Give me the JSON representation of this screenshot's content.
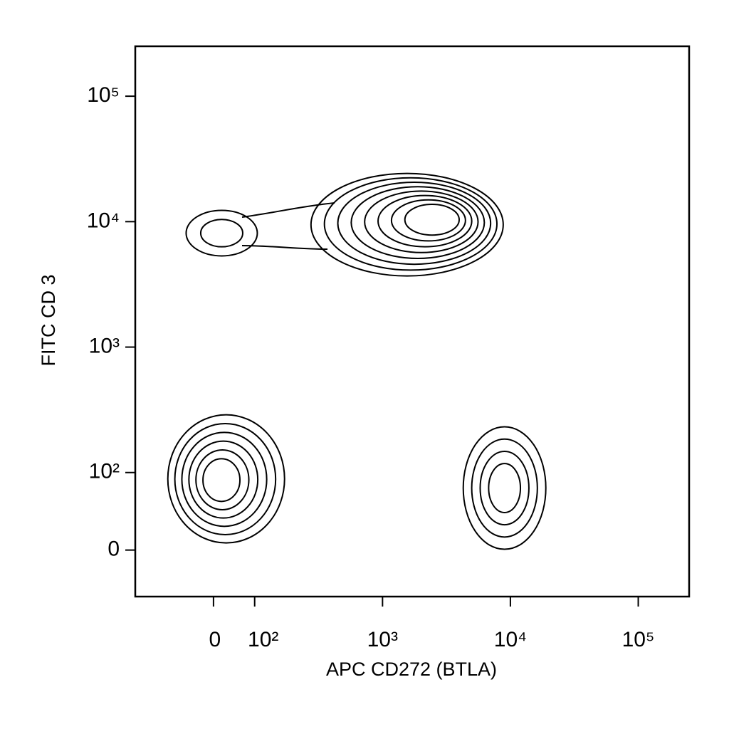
{
  "chart_data": {
    "type": "contour",
    "x_label": "APC CD272 (BTLA)",
    "y_label": "FITC CD 3",
    "xscale": "biexponential",
    "yscale": "biexponential",
    "xlim": [
      -190,
      250000
    ],
    "ylim": [
      -60,
      250000
    ],
    "xticks": [
      0,
      {
        "value": 100,
        "label": "10²"
      },
      {
        "value": 1000,
        "label": "10³"
      },
      {
        "value": 10000,
        "label": "10⁴"
      },
      {
        "value": 100000,
        "label": "10⁵"
      }
    ],
    "yticks": [
      0,
      {
        "value": 100,
        "label": "10²"
      },
      {
        "value": 1000,
        "label": "10³"
      },
      {
        "value": 10000,
        "label": "10⁴"
      },
      {
        "value": 100000,
        "label": "10⁵"
      }
    ],
    "color": "#000000",
    "populations": [
      {
        "x": 20,
        "y": 8100,
        "levels": 2
      },
      {
        "x": 2600,
        "y": 10500,
        "levels": 8
      },
      {
        "x": 17,
        "y": 90,
        "levels": 6
      },
      {
        "x": 9000,
        "y": 80,
        "levels": 4
      }
    ]
  }
}
